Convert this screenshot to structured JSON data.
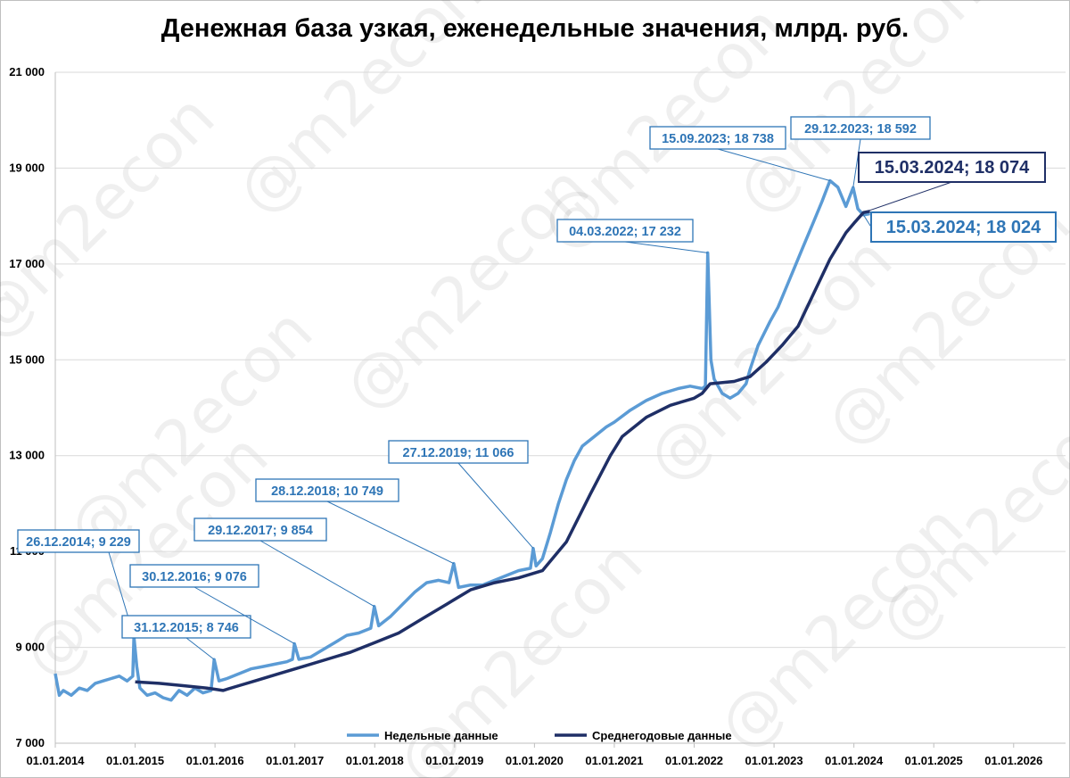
{
  "chart_data": {
    "type": "line",
    "title": "Денежная база узкая, еженедельные значения, млрд. руб.",
    "watermark": "@m2econ",
    "ylim": [
      7000,
      21000
    ],
    "y_ticks": [
      "7 000",
      "9 000",
      "11 000",
      "13 000",
      "15 000",
      "17 000",
      "19 000",
      "21 000"
    ],
    "x_ticks": [
      "01.01.2014",
      "01.01.2015",
      "01.01.2016",
      "01.01.2017",
      "01.01.2018",
      "01.01.2019",
      "01.01.2020",
      "01.01.2021",
      "01.01.2022",
      "01.01.2023",
      "01.01.2024",
      "01.01.2025",
      "01.01.2026"
    ],
    "grid": "horizontal",
    "legend_position": "bottom",
    "series": [
      {
        "name": "Недельные данные",
        "color": "#5b9bd5",
        "points": [
          [
            2014.0,
            8450
          ],
          [
            2014.05,
            8000
          ],
          [
            2014.1,
            8100
          ],
          [
            2014.2,
            8000
          ],
          [
            2014.3,
            8150
          ],
          [
            2014.4,
            8100
          ],
          [
            2014.5,
            8250
          ],
          [
            2014.6,
            8300
          ],
          [
            2014.7,
            8350
          ],
          [
            2014.8,
            8400
          ],
          [
            2014.9,
            8300
          ],
          [
            2014.97,
            8400
          ],
          [
            2014.985,
            9229
          ],
          [
            2015.02,
            8600
          ],
          [
            2015.06,
            8150
          ],
          [
            2015.15,
            8000
          ],
          [
            2015.25,
            8050
          ],
          [
            2015.35,
            7950
          ],
          [
            2015.45,
            7900
          ],
          [
            2015.55,
            8100
          ],
          [
            2015.65,
            8000
          ],
          [
            2015.75,
            8150
          ],
          [
            2015.85,
            8050
          ],
          [
            2015.95,
            8100
          ],
          [
            2015.99,
            8746
          ],
          [
            2016.05,
            8300
          ],
          [
            2016.15,
            8350
          ],
          [
            2016.3,
            8450
          ],
          [
            2016.45,
            8550
          ],
          [
            2016.6,
            8600
          ],
          [
            2016.75,
            8650
          ],
          [
            2016.9,
            8700
          ],
          [
            2016.97,
            8750
          ],
          [
            2016.995,
            9076
          ],
          [
            2017.05,
            8750
          ],
          [
            2017.2,
            8800
          ],
          [
            2017.35,
            8950
          ],
          [
            2017.5,
            9100
          ],
          [
            2017.65,
            9250
          ],
          [
            2017.8,
            9300
          ],
          [
            2017.95,
            9400
          ],
          [
            2017.995,
            9854
          ],
          [
            2018.05,
            9450
          ],
          [
            2018.2,
            9650
          ],
          [
            2018.35,
            9900
          ],
          [
            2018.5,
            10150
          ],
          [
            2018.65,
            10350
          ],
          [
            2018.8,
            10400
          ],
          [
            2018.93,
            10350
          ],
          [
            2018.99,
            10749
          ],
          [
            2019.05,
            10250
          ],
          [
            2019.2,
            10300
          ],
          [
            2019.35,
            10300
          ],
          [
            2019.5,
            10400
          ],
          [
            2019.65,
            10500
          ],
          [
            2019.8,
            10600
          ],
          [
            2019.95,
            10650
          ],
          [
            2019.985,
            11066
          ],
          [
            2020.02,
            10700
          ],
          [
            2020.1,
            10850
          ],
          [
            2020.2,
            11400
          ],
          [
            2020.3,
            12000
          ],
          [
            2020.4,
            12500
          ],
          [
            2020.5,
            12900
          ],
          [
            2020.6,
            13200
          ],
          [
            2020.75,
            13400
          ],
          [
            2020.9,
            13600
          ],
          [
            2021.0,
            13700
          ],
          [
            2021.2,
            13950
          ],
          [
            2021.4,
            14150
          ],
          [
            2021.6,
            14300
          ],
          [
            2021.8,
            14400
          ],
          [
            2021.95,
            14450
          ],
          [
            2022.1,
            14400
          ],
          [
            2022.14,
            14450
          ],
          [
            2022.17,
            17232
          ],
          [
            2022.21,
            15000
          ],
          [
            2022.25,
            14600
          ],
          [
            2022.35,
            14300
          ],
          [
            2022.45,
            14200
          ],
          [
            2022.55,
            14300
          ],
          [
            2022.65,
            14500
          ],
          [
            2022.7,
            14800
          ],
          [
            2022.8,
            15300
          ],
          [
            2022.95,
            15800
          ],
          [
            2023.05,
            16100
          ],
          [
            2023.2,
            16700
          ],
          [
            2023.35,
            17300
          ],
          [
            2023.5,
            17900
          ],
          [
            2023.6,
            18300
          ],
          [
            2023.7,
            18738
          ],
          [
            2023.8,
            18600
          ],
          [
            2023.9,
            18200
          ],
          [
            2023.99,
            18592
          ],
          [
            2024.05,
            18150
          ],
          [
            2024.12,
            18024
          ],
          [
            2024.2,
            18050
          ]
        ]
      },
      {
        "name": "Среднегодовые данные",
        "color": "#1f2f66",
        "points": [
          [
            2015.0,
            8280
          ],
          [
            2015.3,
            8250
          ],
          [
            2015.6,
            8200
          ],
          [
            2015.9,
            8150
          ],
          [
            2016.1,
            8100
          ],
          [
            2016.3,
            8200
          ],
          [
            2016.5,
            8300
          ],
          [
            2016.8,
            8450
          ],
          [
            2017.1,
            8600
          ],
          [
            2017.4,
            8750
          ],
          [
            2017.7,
            8900
          ],
          [
            2018.0,
            9100
          ],
          [
            2018.3,
            9300
          ],
          [
            2018.6,
            9600
          ],
          [
            2018.9,
            9900
          ],
          [
            2019.2,
            10200
          ],
          [
            2019.5,
            10350
          ],
          [
            2019.8,
            10450
          ],
          [
            2020.1,
            10600
          ],
          [
            2020.4,
            11200
          ],
          [
            2020.7,
            12200
          ],
          [
            2020.95,
            13000
          ],
          [
            2021.1,
            13400
          ],
          [
            2021.4,
            13800
          ],
          [
            2021.7,
            14050
          ],
          [
            2022.0,
            14200
          ],
          [
            2022.1,
            14300
          ],
          [
            2022.2,
            14500
          ],
          [
            2022.5,
            14550
          ],
          [
            2022.7,
            14650
          ],
          [
            2022.9,
            14950
          ],
          [
            2023.1,
            15300
          ],
          [
            2023.3,
            15700
          ],
          [
            2023.5,
            16400
          ],
          [
            2023.7,
            17100
          ],
          [
            2023.9,
            17650
          ],
          [
            2024.0,
            17850
          ],
          [
            2024.12,
            18074
          ],
          [
            2024.2,
            18100
          ]
        ]
      }
    ],
    "annotations": [
      {
        "label": "26.12.2014; 9 229",
        "x": 2014.985,
        "y": 9229
      },
      {
        "label": "31.12.2015; 8 746",
        "x": 2015.99,
        "y": 8746
      },
      {
        "label": "30.12.2016; 9 076",
        "x": 2016.995,
        "y": 9076
      },
      {
        "label": "29.12.2017; 9 854",
        "x": 2017.995,
        "y": 9854
      },
      {
        "label": "28.12.2018; 10 749",
        "x": 2018.99,
        "y": 10749
      },
      {
        "label": "27.12.2019; 11 066",
        "x": 2019.985,
        "y": 11066
      },
      {
        "label": "04.03.2022; 17 232",
        "x": 2022.17,
        "y": 17232
      },
      {
        "label": "15.09.2023; 18 738",
        "x": 2023.7,
        "y": 18738
      },
      {
        "label": "29.12.2023; 18 592",
        "x": 2023.99,
        "y": 18592
      },
      {
        "label": "15.03.2024; 18 074",
        "x": 2024.12,
        "y": 18074,
        "series": "Среднегодовые данные"
      },
      {
        "label": "15.03.2024; 18 024",
        "x": 2024.12,
        "y": 18024,
        "series": "Недельные данные"
      }
    ]
  }
}
